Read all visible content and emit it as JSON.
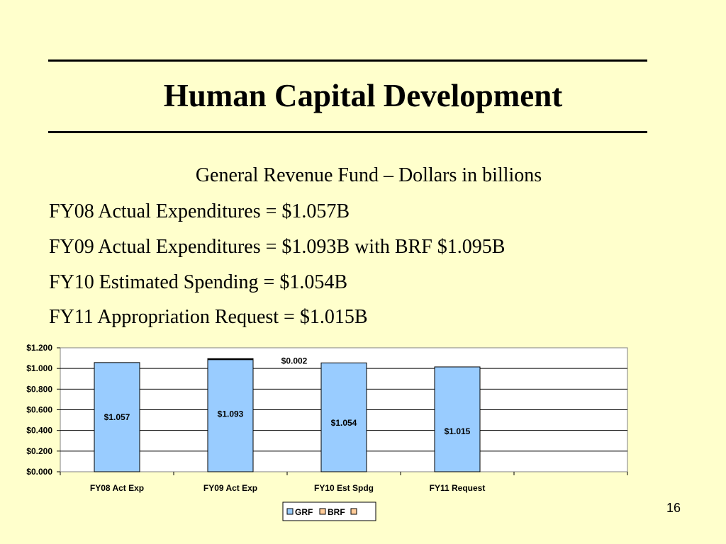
{
  "slide": {
    "title": "Human Capital Development",
    "subtitle": "General Revenue Fund – Dollars in billions",
    "lines": [
      "FY08 Actual Expenditures = $1.057B",
      "FY09 Actual Expenditures = $1.093B with BRF $1.095B",
      "FY10 Estimated Spending = $1.054B",
      "FY11 Appropriation Request = $1.015B"
    ],
    "page_number": "16"
  },
  "colors": {
    "background": "#ffffcc",
    "grf": "#99ccff",
    "brf": "#ffcc99"
  },
  "chart_data": {
    "type": "bar",
    "stacked": true,
    "categories": [
      "FY08 Act Exp",
      "FY09 Act Exp",
      "FY10 Est Spdg",
      "FY11 Request",
      ""
    ],
    "series": [
      {
        "name": "GRF",
        "color": "#99ccff",
        "values": [
          1.057,
          1.093,
          1.054,
          1.015,
          null
        ],
        "labels": [
          "$1.057",
          "$1.093",
          "$1.054",
          "$1.015",
          ""
        ]
      },
      {
        "name": "BRF",
        "color": "#ffcc99",
        "values": [
          0,
          0.002,
          0,
          0,
          null
        ],
        "labels": [
          "",
          "$0.002",
          "",
          "",
          ""
        ]
      }
    ],
    "ylim": [
      0,
      1.2
    ],
    "yticks": [
      "$0.000",
      "$0.200",
      "$0.400",
      "$0.600",
      "$0.800",
      "$1.000",
      "$1.200"
    ],
    "ytick_values": [
      0,
      0.2,
      0.4,
      0.6,
      0.8,
      1.0,
      1.2
    ],
    "grid": true,
    "legend": "bottom"
  }
}
